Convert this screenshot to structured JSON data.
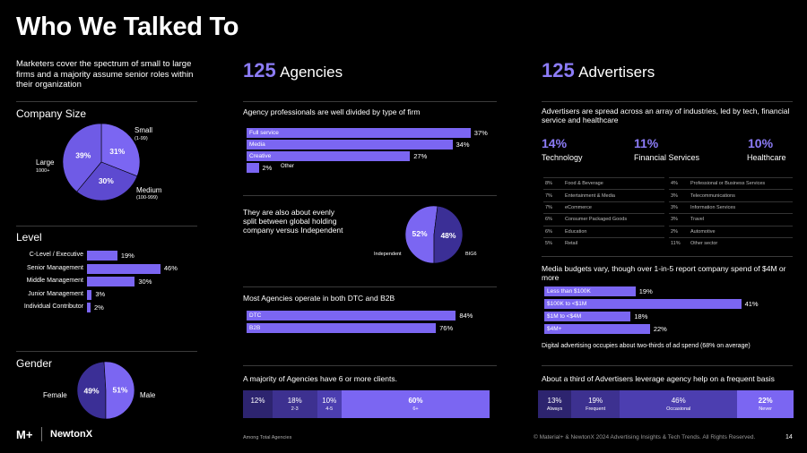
{
  "title": "Who We Talked To",
  "intro": "Marketers cover the spectrum of small to large firms and a majority assume senior roles within their organization",
  "company_size": {
    "heading": "Company Size",
    "small_label": "Small",
    "small_sub": "(1-99)",
    "medium_label": "Medium",
    "medium_sub": "(100-999)",
    "large_label": "Large",
    "large_sub": "1000+"
  },
  "level": {
    "heading": "Level"
  },
  "gender": {
    "heading": "Gender",
    "female": "Female",
    "male": "Male"
  },
  "agencies": {
    "count": "125",
    "label": "Agencies",
    "type_heading": "Agency professionals are well divided by type of firm",
    "holding_text": "They are also about evenly split between global holding company versus Independent",
    "independent_label": "Independent",
    "bigs_label": "BIG6",
    "dtc_heading": "Most Agencies operate in both DTC and B2B",
    "clients_heading": "A majority of Agencies have 6 or more clients.",
    "footnote": "Among Total Agencies"
  },
  "advertisers": {
    "count": "125",
    "label": "Advertisers",
    "industry_heading": "Advertisers are spread across an array of industries, led by tech, financial service and healthcare",
    "top": [
      {
        "pct": "14%",
        "name": "Technology"
      },
      {
        "pct": "11%",
        "name": "Financial Services"
      },
      {
        "pct": "10%",
        "name": "Healthcare"
      }
    ],
    "industries_left": [
      {
        "pct": "8%",
        "name": "Food & Beverage"
      },
      {
        "pct": "7%",
        "name": "Entertainment & Media"
      },
      {
        "pct": "7%",
        "name": "eCommerce"
      },
      {
        "pct": "6%",
        "name": "Consumer Packaged Goods"
      },
      {
        "pct": "6%",
        "name": "Education"
      },
      {
        "pct": "5%",
        "name": "Retail"
      }
    ],
    "industries_right": [
      {
        "pct": "4%",
        "name": "Professional or Business Services"
      },
      {
        "pct": "3%",
        "name": "Telecommunications"
      },
      {
        "pct": "3%",
        "name": "Information Services"
      },
      {
        "pct": "3%",
        "name": "Travel"
      },
      {
        "pct": "2%",
        "name": "Automotive"
      },
      {
        "pct": "11%",
        "name": "Other sector"
      }
    ],
    "budget_heading": "Media budgets vary, though over 1-in-5 report company spend of $4M or more",
    "digital_note": "Digital advertising occupies about two-thirds of ad spend (68% on average)",
    "frequency_heading": "About a third of Advertisers leverage agency help on a frequent basis"
  },
  "footer": {
    "logo1": "M+",
    "logo2": "NewtonX",
    "copyright": "© Material+ & NewtonX 2024 Advertising Insights & Tech Trends. All Rights Reserved.",
    "page": "14"
  },
  "chart_data": [
    {
      "type": "pie",
      "title": "Company Size",
      "labels": [
        "Small",
        "Medium",
        "Large"
      ],
      "values": [
        31,
        30,
        39
      ],
      "value_labels": [
        "31%",
        "30%",
        "39%"
      ]
    },
    {
      "type": "bar",
      "title": "Level",
      "categories": [
        "C-Level / Executive",
        "Senior Management",
        "Middle Management",
        "Junior Management",
        "Individual Contributor"
      ],
      "values": [
        19,
        46,
        30,
        3,
        2
      ],
      "value_labels": [
        "19%",
        "46%",
        "30%",
        "3%",
        "2%"
      ],
      "xlim": [
        0,
        50
      ]
    },
    {
      "type": "pie",
      "title": "Gender",
      "labels": [
        "Female",
        "Male"
      ],
      "values": [
        49,
        51
      ],
      "value_labels": [
        "49%",
        "51%"
      ]
    },
    {
      "type": "bar",
      "title": "Agency professionals are well divided by type of firm",
      "categories": [
        "Full service",
        "Media",
        "Creative",
        "Other"
      ],
      "values": [
        37,
        34,
        27,
        2
      ],
      "value_labels": [
        "37%",
        "34%",
        "27%",
        "2%"
      ],
      "xlim": [
        0,
        40
      ]
    },
    {
      "type": "pie",
      "labels": [
        "Independent",
        "BIG6"
      ],
      "values": [
        52,
        48
      ],
      "value_labels": [
        "52%",
        "48%"
      ]
    },
    {
      "type": "bar",
      "title": "Most Agencies operate in both DTC and B2B",
      "categories": [
        "DTC",
        "B2B"
      ],
      "values": [
        84,
        76
      ],
      "value_labels": [
        "84%",
        "76%"
      ],
      "xlim": [
        0,
        90
      ]
    },
    {
      "type": "bar",
      "title": "A majority of Agencies have 6 or more clients.",
      "stacked": true,
      "categories": [
        "",
        "2-3",
        "4-5",
        "6+"
      ],
      "values": [
        12,
        18,
        10,
        60
      ],
      "value_labels": [
        "12%",
        "18%",
        "10%",
        "60%"
      ]
    },
    {
      "type": "bar",
      "title": "Media budgets",
      "categories": [
        "Less than $100K",
        "$100K to <$1M",
        "$1M to <$4M",
        "$4M+"
      ],
      "values": [
        19,
        41,
        18,
        22
      ],
      "value_labels": [
        "19%",
        "41%",
        "18%",
        "22%"
      ],
      "xlim": [
        0,
        45
      ]
    },
    {
      "type": "bar",
      "title": "About a third of Advertisers leverage agency help on a frequent basis",
      "stacked": true,
      "categories": [
        "Always",
        "Frequent",
        "Occasional",
        "Never"
      ],
      "values": [
        13,
        19,
        46,
        22
      ],
      "value_labels": [
        "13%",
        "19%",
        "46%",
        "22%"
      ]
    }
  ]
}
